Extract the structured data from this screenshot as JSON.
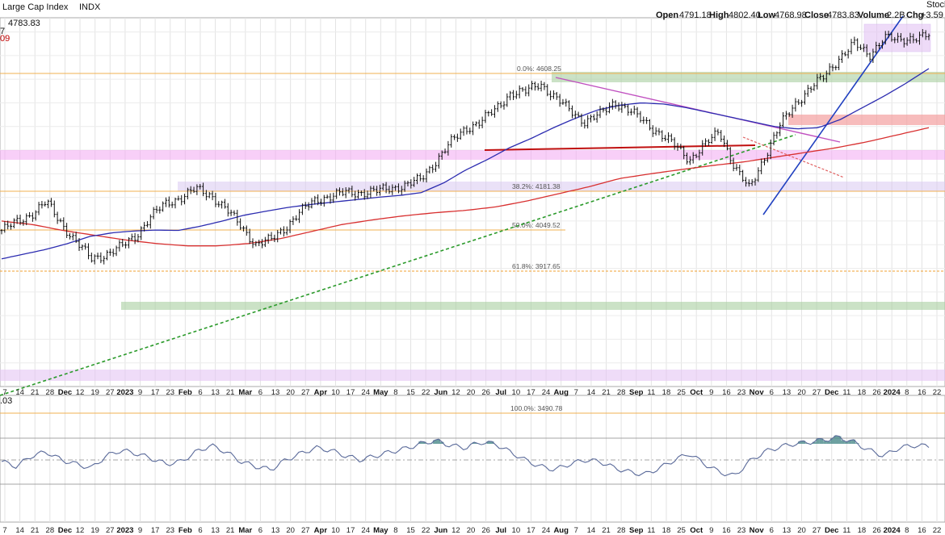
{
  "window": {
    "title": "Large Cap Index",
    "exchange": "INDX"
  },
  "header": {
    "last_value": "4783.83",
    "left_fragment_1": "7",
    "left_fragment_2": "09",
    "rsi_fragment": ".03",
    "open_label": "Open",
    "open_value": "4791.18",
    "high_label": "High",
    "high_value": "4802.40",
    "low_label": "Low",
    "low_value": "4768.98",
    "close_label": "Close",
    "close_value": "4783.83",
    "volume_label": "Volume",
    "volume_value": "2.2B",
    "change_label": "Chg",
    "change_value": "+3.59",
    "brand": "StockC"
  },
  "chart_data": {
    "type": "bar",
    "title": "Large Cap Index INDX",
    "price_ylim": [
      3300,
      4860
    ],
    "x_tick_labels": [
      "7",
      "14",
      "21",
      "28",
      "Dec",
      "12",
      "19",
      "27",
      "2023",
      "9",
      "17",
      "23",
      "Feb",
      "6",
      "13",
      "21",
      "Mar",
      "6",
      "13",
      "20",
      "27",
      "Apr",
      "10",
      "17",
      "24",
      "May",
      "8",
      "15",
      "22",
      "Jun",
      "12",
      "20",
      "26",
      "Jul",
      "10",
      "17",
      "24",
      "Aug",
      "7",
      "14",
      "21",
      "28",
      "Sep",
      "11",
      "18",
      "25",
      "Oct",
      "9",
      "16",
      "23",
      "Nov",
      "6",
      "13",
      "20",
      "27",
      "Dec",
      "11",
      "18",
      "26",
      "2024",
      "8",
      "16",
      "22"
    ],
    "price_series_close": [
      3960,
      3995,
      4030,
      4080,
      3990,
      3910,
      3840,
      3860,
      3890,
      3940,
      4020,
      4075,
      4100,
      4135,
      4110,
      4050,
      3980,
      3900,
      3920,
      3975,
      4040,
      4090,
      4105,
      4120,
      4120,
      4125,
      4140,
      4150,
      4175,
      4250,
      4330,
      4390,
      4420,
      4470,
      4540,
      4545,
      4585,
      4520,
      4470,
      4420,
      4450,
      4505,
      4465,
      4420,
      4370,
      4320,
      4260,
      4320,
      4380,
      4230,
      4135,
      4270,
      4400,
      4490,
      4560,
      4610,
      4690,
      4750,
      4700,
      4780,
      4760,
      4780,
      4784
    ],
    "sma_50": [
      3840,
      3860,
      3880,
      3905,
      3935,
      3950,
      3958,
      3962,
      3960,
      3978,
      4000,
      4025,
      4042,
      4058,
      4070,
      4080,
      4090,
      4100,
      4108,
      4120,
      4160,
      4215,
      4260,
      4310,
      4350,
      4395,
      4435,
      4470,
      4490,
      4500,
      4495,
      4480,
      4460,
      4440,
      4420,
      4400,
      4390,
      4395,
      4430,
      4480,
      4530,
      4585,
      4645
    ],
    "sma_200": [
      4000,
      3985,
      3960,
      3940,
      3920,
      3905,
      3895,
      3895,
      3905,
      3925,
      3955,
      3985,
      4005,
      4022,
      4035,
      4045,
      4060,
      4085,
      4115,
      4145,
      4180,
      4200,
      4218,
      4235,
      4250,
      4270,
      4290,
      4310,
      4335,
      4365,
      4395
    ],
    "rsi_ylim": [
      0,
      100
    ],
    "rsi_series": [
      48,
      42,
      55,
      60,
      50,
      45,
      40,
      55,
      62,
      58,
      52,
      45,
      48,
      60,
      68,
      60,
      48,
      42,
      38,
      50,
      58,
      65,
      62,
      55,
      50,
      55,
      60,
      64,
      70,
      74,
      68,
      65,
      72,
      70,
      60,
      50,
      42,
      38,
      45,
      50,
      48,
      40,
      35,
      32,
      40,
      50,
      58,
      45,
      35,
      30,
      48,
      60,
      66,
      70,
      72,
      75,
      78,
      72,
      62,
      55,
      65,
      68,
      67
    ],
    "fib_labels": [
      "0.0%: 4608.25",
      "38.2%: 4181.38",
      "50.0%: 4049.52",
      "61.8%: 3917.65",
      "100.0%: 3490.78"
    ],
    "grid": true
  }
}
